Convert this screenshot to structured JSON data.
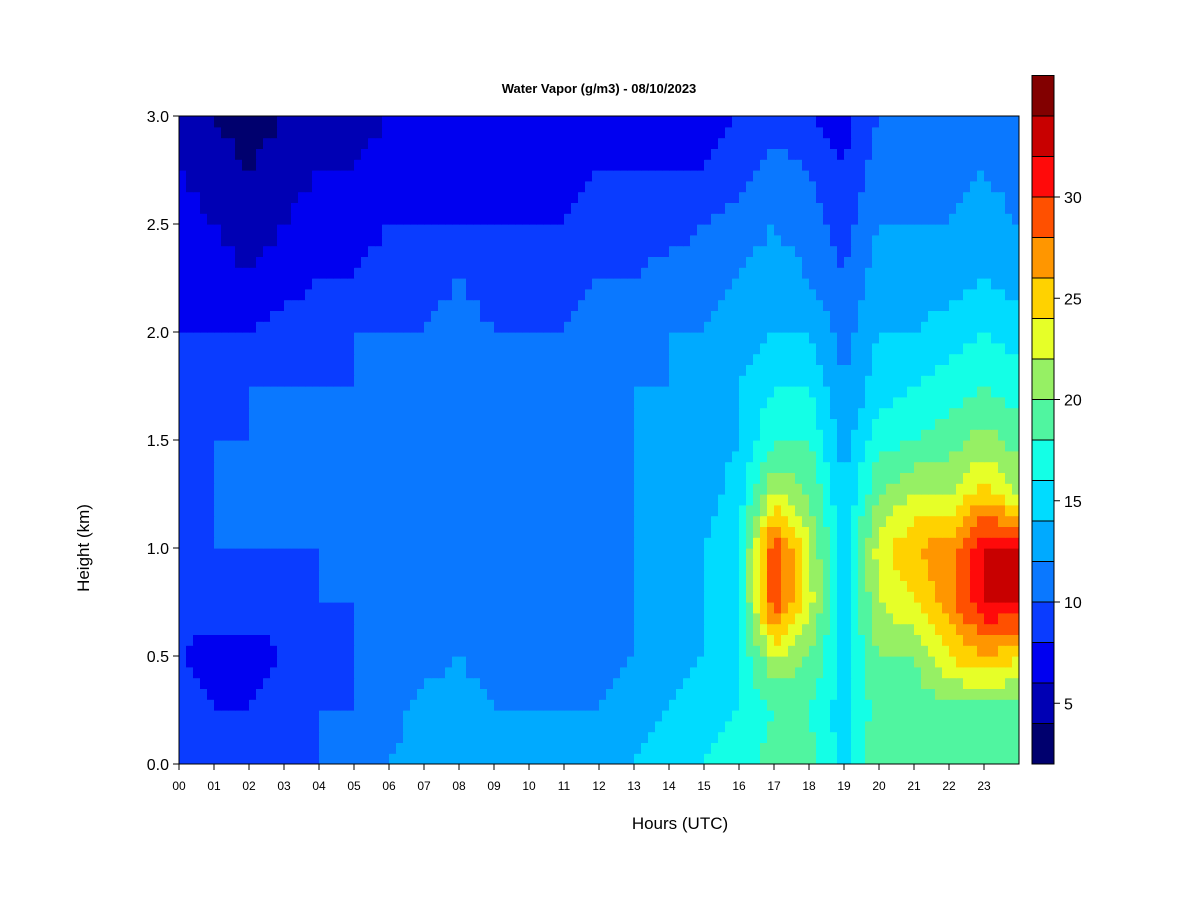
{
  "chart_data": {
    "type": "heatmap",
    "title": "Water Vapor (g/m3) - 08/10/2023",
    "xlabel": "Hours (UTC)",
    "ylabel": "Height (km)",
    "xlim": [
      0,
      24
    ],
    "ylim": [
      0,
      3
    ],
    "x_ticks": [
      "00",
      "01",
      "02",
      "03",
      "04",
      "05",
      "06",
      "07",
      "08",
      "09",
      "10",
      "11",
      "12",
      "13",
      "14",
      "15",
      "16",
      "17",
      "18",
      "19",
      "20",
      "21",
      "22",
      "23"
    ],
    "y_ticks": [
      "0.0",
      "0.5",
      "1.0",
      "1.5",
      "2.0",
      "2.5",
      "3.0"
    ],
    "colorbar": {
      "min": 2,
      "max": 34,
      "step": 2,
      "tick_labels": [
        "5",
        "10",
        "15",
        "20",
        "25",
        "30"
      ],
      "tick_values": [
        5,
        10,
        15,
        20,
        25,
        30
      ],
      "colors": [
        "#00006e",
        "#0000b4",
        "#0000f0",
        "#0a3cff",
        "#0a78ff",
        "#00aaff",
        "#00dcff",
        "#14ffe6",
        "#50f5a0",
        "#96f064",
        "#e6ff28",
        "#ffd200",
        "#ff9600",
        "#ff5000",
        "#ff0a0a",
        "#c80000",
        "#820000"
      ]
    },
    "x_hours": [
      0,
      1,
      2,
      3,
      4,
      5,
      6,
      7,
      8,
      9,
      10,
      11,
      12,
      13,
      14,
      15,
      16,
      17,
      18,
      19,
      20,
      21,
      22,
      23,
      24
    ],
    "y_heights_km": [
      0.0,
      0.25,
      0.5,
      0.75,
      1.0,
      1.25,
      1.5,
      1.75,
      2.0,
      2.25,
      2.5,
      2.75,
      3.0
    ],
    "values_g_m3": [
      [
        10,
        10,
        10,
        10,
        10,
        10,
        12,
        13,
        13,
        13,
        13,
        13,
        13,
        14,
        15,
        16,
        17,
        19,
        19,
        15,
        20,
        20,
        20,
        20,
        20
      ],
      [
        9,
        8,
        8,
        9,
        10,
        10,
        11,
        13,
        13,
        12,
        12,
        12,
        12,
        13,
        14,
        15,
        16,
        18,
        18,
        15,
        19,
        19,
        19,
        19,
        19
      ],
      [
        8,
        7,
        7,
        8,
        9,
        10,
        10,
        11,
        12,
        11,
        11,
        11,
        11,
        12,
        13,
        14,
        16,
        22,
        20,
        15,
        20,
        20,
        24,
        26,
        24
      ],
      [
        9,
        9,
        9,
        9,
        10,
        10,
        10,
        11,
        12,
        11,
        11,
        11,
        11,
        12,
        13,
        14,
        16,
        30,
        23,
        15,
        22,
        24,
        27,
        32,
        32
      ],
      [
        9,
        10,
        10,
        10,
        10,
        10,
        10,
        11,
        12,
        11,
        11,
        11,
        11,
        12,
        13,
        14,
        16,
        30,
        22,
        15,
        23,
        26,
        27,
        32,
        32
      ],
      [
        9,
        10,
        10,
        10,
        10,
        10,
        10,
        11,
        12,
        11,
        11,
        11,
        11,
        12,
        12,
        13,
        15,
        22,
        20,
        14,
        20,
        22,
        22,
        25,
        22
      ],
      [
        9,
        10,
        10,
        10,
        10,
        10,
        10,
        11,
        12,
        11,
        11,
        11,
        11,
        12,
        12,
        13,
        14,
        18,
        18,
        13,
        17,
        18,
        19,
        21,
        19
      ],
      [
        9,
        9,
        10,
        10,
        10,
        10,
        10,
        11,
        12,
        11,
        11,
        11,
        11,
        12,
        12,
        13,
        14,
        16,
        16,
        12,
        15,
        16,
        17,
        18,
        17
      ],
      [
        8,
        8,
        8,
        9,
        9,
        10,
        10,
        10,
        11,
        10,
        10,
        10,
        11,
        11,
        12,
        12,
        13,
        14,
        14,
        11,
        14,
        14,
        15,
        16,
        15
      ],
      [
        8,
        7,
        6,
        7,
        8,
        8,
        9,
        9,
        10,
        9,
        9,
        9,
        10,
        10,
        11,
        11,
        12,
        13,
        12,
        10,
        13,
        13,
        13,
        14,
        13
      ],
      [
        7,
        6,
        5,
        6,
        7,
        7,
        8,
        8,
        8,
        8,
        8,
        8,
        9,
        9,
        9,
        10,
        11,
        12,
        11,
        9,
        12,
        12,
        12,
        13,
        12
      ],
      [
        6,
        5,
        4,
        5,
        6,
        6,
        7,
        7,
        7,
        7,
        7,
        7,
        8,
        8,
        8,
        8,
        9,
        11,
        10,
        8,
        11,
        11,
        11,
        12,
        11
      ],
      [
        5,
        4,
        3,
        4,
        5,
        5,
        6,
        6,
        6,
        6,
        6,
        6,
        7,
        7,
        7,
        7,
        8,
        9,
        8,
        7,
        10,
        10,
        10,
        11,
        10
      ]
    ]
  }
}
